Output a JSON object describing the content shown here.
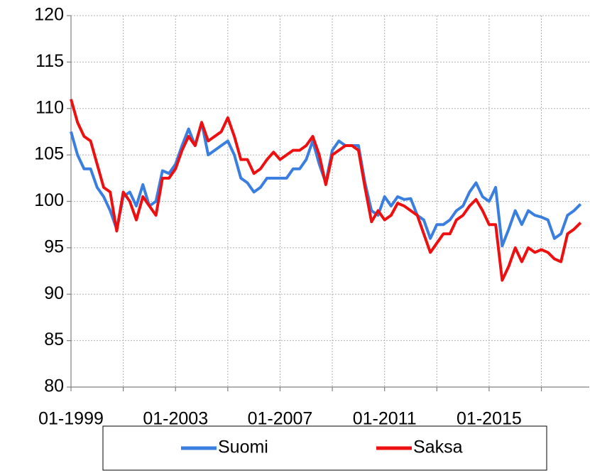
{
  "chart_data": {
    "type": "line",
    "x": [
      "01-1999",
      "04-1999",
      "07-1999",
      "10-1999",
      "01-2000",
      "04-2000",
      "07-2000",
      "10-2000",
      "01-2001",
      "04-2001",
      "07-2001",
      "10-2001",
      "01-2002",
      "04-2002",
      "07-2002",
      "10-2002",
      "01-2003",
      "04-2003",
      "07-2003",
      "10-2003",
      "01-2004",
      "04-2004",
      "07-2004",
      "10-2004",
      "01-2005",
      "04-2005",
      "07-2005",
      "10-2005",
      "01-2006",
      "04-2006",
      "07-2006",
      "10-2006",
      "01-2007",
      "04-2007",
      "07-2007",
      "10-2007",
      "01-2008",
      "04-2008",
      "07-2008",
      "10-2008",
      "01-2009",
      "04-2009",
      "07-2009",
      "10-2009",
      "01-2010",
      "04-2010",
      "07-2010",
      "10-2010",
      "01-2011",
      "04-2011",
      "07-2011",
      "10-2011",
      "01-2012",
      "04-2012",
      "07-2012",
      "10-2012",
      "01-2013",
      "04-2013",
      "07-2013",
      "10-2013",
      "01-2014",
      "04-2014",
      "07-2014",
      "10-2014",
      "01-2015",
      "04-2015",
      "07-2015",
      "10-2015",
      "01-2016",
      "04-2016",
      "07-2016",
      "10-2016",
      "01-2017",
      "04-2017",
      "07-2017",
      "10-2017",
      "01-2018",
      "04-2018",
      "07-2018"
    ],
    "series": [
      {
        "name": "Suomi",
        "color": "#3a7fe0",
        "values": [
          107.5,
          105,
          103.5,
          103.5,
          101.5,
          100.5,
          99,
          97,
          100.5,
          101,
          99.5,
          101.8,
          99.5,
          100,
          103.3,
          103,
          104,
          106,
          107.8,
          106,
          108.5,
          105,
          105.5,
          106,
          106.5,
          105,
          102.5,
          102,
          101,
          101.5,
          102.5,
          102.5,
          102.5,
          102.5,
          103.5,
          103.5,
          104.5,
          106.5,
          104,
          102,
          105.5,
          106.5,
          106,
          106,
          106,
          102,
          99,
          98.5,
          100.5,
          99.5,
          100.5,
          100.2,
          100.3,
          98.5,
          98,
          96,
          97.5,
          97.5,
          98,
          99,
          99.5,
          101,
          102,
          100.5,
          100,
          101.5,
          95.2,
          97,
          99,
          97.5,
          99,
          98.5,
          98.3,
          98,
          96,
          96.5,
          98.5,
          99,
          99.7
        ]
      },
      {
        "name": "Saksa",
        "color": "#ee1010",
        "values": [
          111,
          108.5,
          107,
          106.5,
          104,
          101.5,
          101,
          96.8,
          101,
          100,
          98,
          100.5,
          99.5,
          98.5,
          102.5,
          102.5,
          103.5,
          105.5,
          107,
          106,
          108.5,
          106.5,
          107,
          107.5,
          109,
          107,
          104.5,
          104.5,
          103,
          103.5,
          104.5,
          105.3,
          104.5,
          105,
          105.5,
          105.5,
          106,
          107,
          105,
          101.8,
          105,
          105.5,
          106,
          106,
          105.5,
          101.5,
          97.8,
          99,
          98,
          98.5,
          99.8,
          99.5,
          99,
          98.5,
          96.5,
          94.5,
          95.5,
          96.5,
          96.5,
          98,
          98.5,
          99.5,
          100.2,
          99,
          97.5,
          97.5,
          91.5,
          93,
          95,
          93.5,
          95,
          94.5,
          94.8,
          94.5,
          93.8,
          93.5,
          96.5,
          97,
          97.7
        ]
      }
    ],
    "xlim": [
      "01-1999",
      "11-2018"
    ],
    "xticks": [
      "01-1999",
      "01-2003",
      "01-2007",
      "01-2011",
      "01-2015"
    ],
    "xgrid": [
      "01-2001",
      "01-2005",
      "01-2009",
      "01-2013",
      "01-2017"
    ],
    "ylim": [
      80,
      120
    ],
    "yticks": [
      80,
      85,
      90,
      95,
      100,
      105,
      110,
      115,
      120
    ],
    "grid": true,
    "legend": "bottom"
  }
}
